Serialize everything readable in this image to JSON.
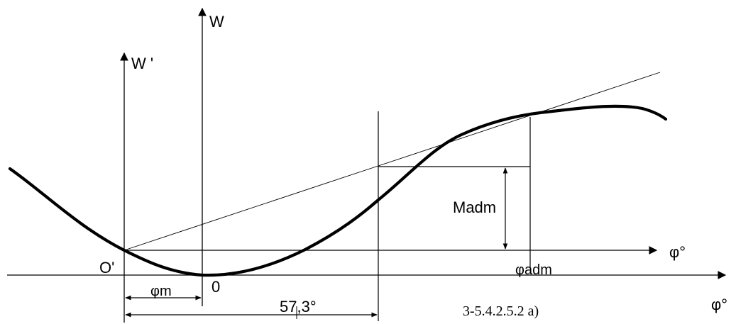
{
  "labels": {
    "w_axis": "W",
    "w_prime_axis": "W '",
    "phi_axis_upper": "φ°",
    "phi_axis_lower": "φ°",
    "origin_prime": "O'",
    "origin": "0",
    "phi_m": "φm",
    "phi_adm": "φadm",
    "m_adm": "Madm",
    "dimension_57": "57,3°",
    "caption": "3-5.4.2.5.2 a)"
  },
  "colors": {
    "ink": "#000000",
    "background": "#ffffff"
  }
}
